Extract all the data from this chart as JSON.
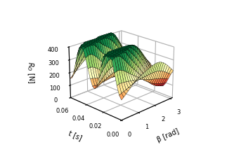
{
  "beta_min": 0.0,
  "beta_max": 3.14159,
  "t_min": 0.0,
  "t_max": 0.06,
  "R_min": 0,
  "R_max": 400,
  "beta_ticks": [
    0,
    1,
    2,
    3
  ],
  "t_ticks": [
    0.0,
    0.02,
    0.04,
    0.06
  ],
  "R_ticks": [
    0,
    100,
    200,
    300,
    400
  ],
  "xlabel": "β [rad]",
  "ylabel": "t [s]",
  "zlabel": "$R_O$ [N]",
  "colormap": "RdYlGn",
  "n_beta": 25,
  "n_t": 25,
  "view_elev": 22,
  "view_azim": -135,
  "background_color": "#ffffff"
}
